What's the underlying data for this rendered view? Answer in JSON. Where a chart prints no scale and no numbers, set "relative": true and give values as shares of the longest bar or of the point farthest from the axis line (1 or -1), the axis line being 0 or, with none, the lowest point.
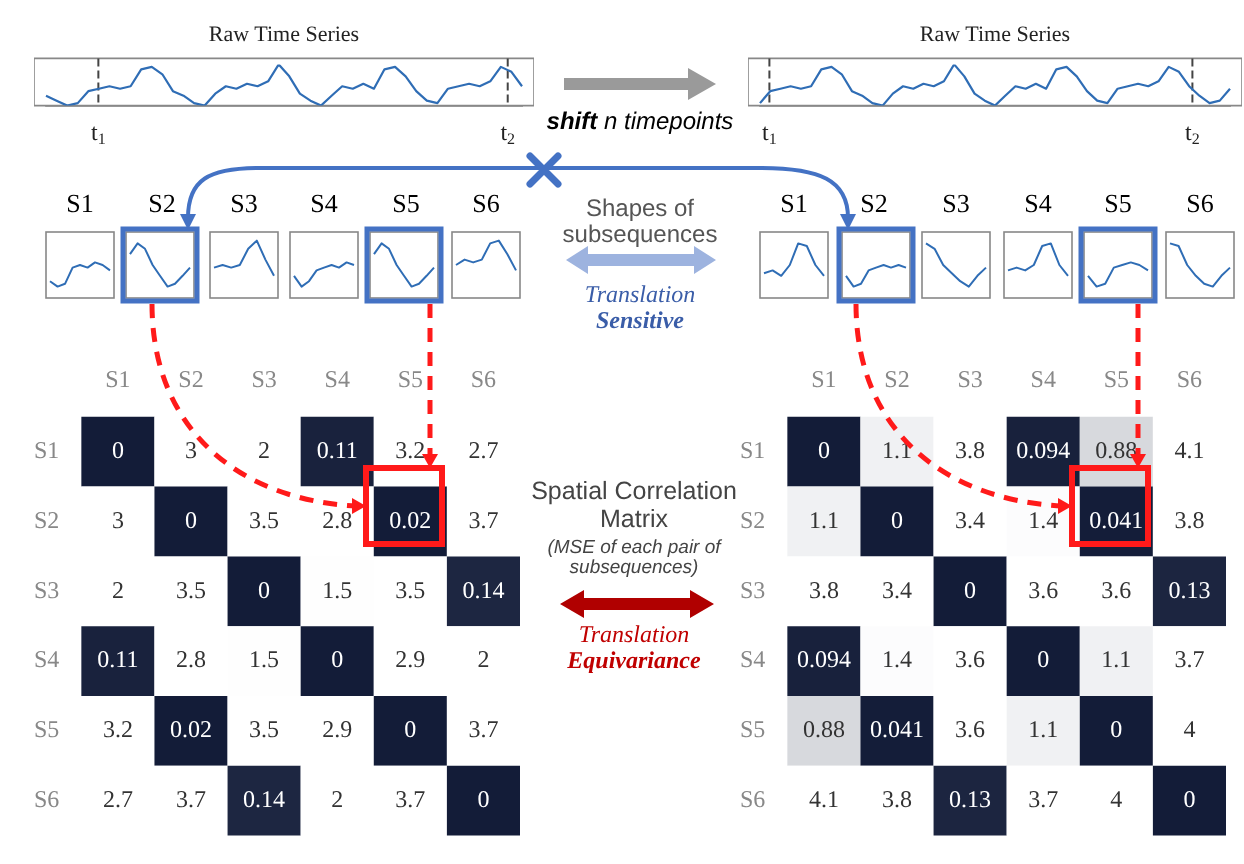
{
  "chart_data": [
    {
      "type": "line",
      "title": "Raw Time Series",
      "relative": true,
      "categories": [
        null,
        null,
        null,
        null,
        null,
        null,
        null,
        null,
        null,
        null,
        null,
        null,
        null,
        null,
        null,
        null,
        null,
        null,
        null,
        null,
        null,
        null,
        null,
        null,
        null,
        null,
        null,
        null,
        null,
        null,
        null,
        null,
        null,
        null,
        null,
        null,
        null,
        null,
        null,
        null,
        null,
        null,
        null,
        null,
        null,
        null
      ],
      "series": [
        {
          "color": "#2f6db5",
          "values": [
            0.24,
            0.12,
            0,
            0.06,
            0.35,
            0.41,
            0.47,
            0.41,
            0.47,
            0.88,
            0.94,
            0.76,
            0.35,
            0.24,
            0.06,
            0,
            0.29,
            0.47,
            0.41,
            0.53,
            0.47,
            0.59,
            1,
            0.71,
            0.29,
            0.12,
            0,
            0.24,
            0.47,
            0.41,
            0.53,
            0.41,
            0.88,
            0.94,
            0.71,
            0.35,
            0.12,
            0.06,
            0.41,
            0.47,
            0.53,
            0.47,
            0.59,
            0.94,
            0.82,
            0.47
          ]
        }
      ],
      "annotations": [
        "t$_{1}$",
        "t$_{2}$"
      ]
    },
    {
      "type": "line",
      "title": "Raw Time Series",
      "relative": true,
      "categories": [
        null,
        null,
        null,
        null,
        null,
        null,
        null,
        null,
        null,
        null,
        null,
        null,
        null,
        null,
        null,
        null,
        null,
        null,
        null,
        null,
        null,
        null,
        null,
        null,
        null,
        null,
        null,
        null,
        null,
        null,
        null,
        null,
        null,
        null,
        null,
        null,
        null,
        null,
        null,
        null,
        null,
        null,
        null,
        null,
        null,
        null,
        null
      ],
      "series": [
        {
          "color": "#2f6db5",
          "values": [
            0.06,
            0.35,
            0.41,
            0.47,
            0.41,
            0.47,
            0.88,
            0.94,
            0.76,
            0.35,
            0.24,
            0.06,
            0,
            0.29,
            0.47,
            0.41,
            0.53,
            0.47,
            0.59,
            1,
            0.71,
            0.29,
            0.12,
            0,
            0.24,
            0.47,
            0.41,
            0.53,
            0.41,
            0.88,
            0.94,
            0.71,
            0.35,
            0.12,
            0.06,
            0.41,
            0.47,
            0.53,
            0.47,
            0.59,
            0.94,
            0.82,
            0.47,
            0.24,
            0.06,
            0.12,
            0.41
          ]
        }
      ],
      "annotations": [
        "t$_{1}$",
        "t$_{2}$"
      ]
    },
    {
      "type": "other",
      "annotations": [
        "shift n timepoints",
        "S1",
        "S2",
        "S3",
        "S4",
        "S5",
        "S6",
        "Shapes of subsequences",
        "Translation Sensitive",
        "S1",
        "S2",
        "S3",
        "S4",
        "S5",
        "S6",
        "Spatial Correlation Matrix",
        "(MSE of each pair of subsequences)",
        "Translation Equivariance"
      ]
    },
    {
      "type": "heatmap",
      "categories": [
        "S1",
        "S2",
        "S3",
        "S4",
        "S5",
        "S6"
      ],
      "y_categories": [
        "S1",
        "S2",
        "S3",
        "S4",
        "S5",
        "S6"
      ],
      "cells": [
        [
          0,
          3,
          2,
          0.11,
          3.2,
          2.7
        ],
        [
          3,
          0,
          3.5,
          2.8,
          0.02,
          3.7
        ],
        [
          2,
          3.5,
          0,
          1.5,
          3.5,
          0.14
        ],
        [
          0.11,
          2.8,
          1.5,
          0,
          2.9,
          2
        ],
        [
          3.2,
          0.02,
          3.5,
          2.9,
          0,
          3.7
        ],
        [
          2.7,
          3.7,
          0.14,
          2,
          3.7,
          0
        ]
      ],
      "data_labels": true
    },
    {
      "type": "heatmap",
      "categories": [
        "S1",
        "S2",
        "S3",
        "S4",
        "S5",
        "S6"
      ],
      "y_categories": [
        "S1",
        "S2",
        "S3",
        "S4",
        "S5",
        "S6"
      ],
      "cells": [
        [
          0,
          1.1,
          3.8,
          0.094,
          0.88,
          4.1
        ],
        [
          1.1,
          0,
          3.4,
          1.4,
          0.041,
          3.8
        ],
        [
          3.8,
          3.4,
          0,
          3.6,
          3.6,
          0.13
        ],
        [
          0.094,
          1.4,
          3.6,
          0,
          1.1,
          3.7
        ],
        [
          0.88,
          0.041,
          3.6,
          1.1,
          0,
          4
        ],
        [
          4.1,
          3.8,
          0.13,
          3.7,
          4,
          0
        ]
      ],
      "data_labels": true
    }
  ]
}
